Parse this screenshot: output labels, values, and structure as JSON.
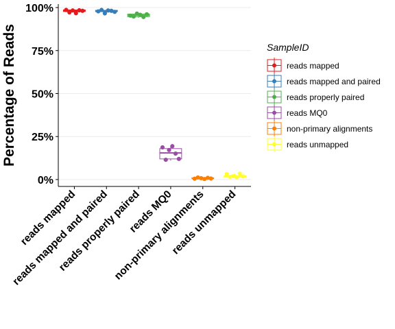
{
  "chart_data": {
    "type": "box",
    "ylabel": "Percentage of Reads",
    "xlabel": "",
    "ylim": [
      -4,
      102
    ],
    "yticks": [
      0,
      25,
      50,
      75,
      100
    ],
    "ytick_labels": [
      "0%",
      "25%",
      "50%",
      "75%",
      "100%"
    ],
    "grid": "horizontal",
    "legend": {
      "title": "SampleID",
      "placement": "right"
    },
    "categories": [
      "reads mapped",
      "reads mapped and paired",
      "reads properly paired",
      "reads MQ0",
      "non-primary alignments",
      "reads unmapped"
    ],
    "series": [
      {
        "name": "reads mapped",
        "color": "#E41A1C",
        "box": {
          "min": 96.5,
          "q1": 97.7,
          "median": 98.2,
          "q3": 98.6,
          "max": 98.8
        },
        "points": [
          98.6,
          97.2,
          98.3,
          96.7,
          98.4,
          98.1
        ]
      },
      {
        "name": "reads mapped and paired",
        "color": "#377EB8",
        "box": {
          "min": 96.5,
          "q1": 97.6,
          "median": 98.0,
          "q3": 98.4,
          "max": 98.7
        },
        "points": [
          97.8,
          98.6,
          96.6,
          98.3,
          98.1,
          97.5
        ]
      },
      {
        "name": "reads properly paired",
        "color": "#4DAF4A",
        "box": {
          "min": 94.0,
          "q1": 94.7,
          "median": 95.5,
          "q3": 96.2,
          "max": 96.8
        },
        "points": [
          95.3,
          94.8,
          96.5,
          95.8,
          94.5,
          96.1
        ]
      },
      {
        "name": "reads MQ0",
        "color": "#984EA3",
        "box": {
          "min": 11.0,
          "q1": 12.0,
          "median": 15.5,
          "q3": 18.0,
          "max": 19.5
        },
        "points": [
          18.7,
          11.5,
          17.2,
          19.4,
          15.1,
          12.0
        ]
      },
      {
        "name": "non-primary alignments",
        "color": "#FF7F00",
        "box": {
          "min": 0.2,
          "q1": 0.5,
          "median": 0.8,
          "q3": 1.0,
          "max": 1.5
        },
        "points": [
          0.5,
          1.2,
          0.8,
          0.3,
          1.0,
          0.6
        ]
      },
      {
        "name": "reads unmapped",
        "color": "#FFFF33",
        "box": {
          "min": 1.2,
          "q1": 1.5,
          "median": 1.8,
          "q3": 2.2,
          "max": 3.5
        },
        "points": [
          3.2,
          1.6,
          2.0,
          1.4,
          3.4,
          1.8
        ]
      }
    ]
  }
}
